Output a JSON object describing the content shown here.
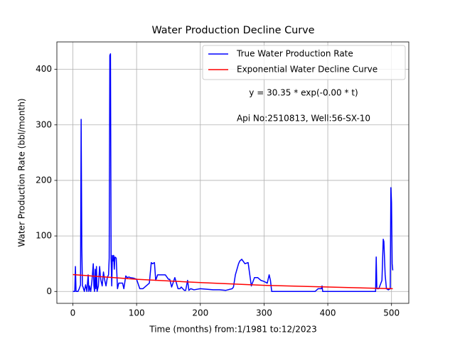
{
  "chart_data": {
    "type": "line",
    "title": "Water Production Decline Curve",
    "x_label": "Time (months) from:1/1981 to:12/2023",
    "y_label": "Water Production Rate (bbl/month)",
    "annotations": [
      "y = 30.35 * exp(-0.00 * t)",
      "Api No:2510813, Well:56-SX-10"
    ],
    "xlim": [
      -25.1,
      527.1
    ],
    "xticks": [
      0,
      100,
      200,
      300,
      400,
      500
    ],
    "ylim": [
      -21.4,
      449.4
    ],
    "yticks": [
      0,
      100,
      200,
      300,
      400
    ],
    "grid": true,
    "legend": "upper right",
    "series": [
      {
        "name": "True Water Production Rate",
        "color": "#0000ff",
        "x": [
          0,
          3,
          4,
          5,
          6,
          8,
          10,
          12,
          13,
          14,
          15,
          16,
          18,
          20,
          22,
          24,
          25,
          26,
          28,
          30,
          32,
          33,
          34,
          35,
          36,
          37,
          38,
          40,
          42,
          43,
          44,
          46,
          48,
          50,
          52,
          54,
          56,
          57,
          58,
          59,
          60,
          61,
          62,
          63,
          64,
          65,
          66,
          68,
          70,
          72,
          75,
          78,
          80,
          83,
          85,
          88,
          90,
          95,
          100,
          105,
          108,
          110,
          115,
          120,
          123,
          125,
          128,
          130,
          133,
          135,
          140,
          145,
          150,
          152,
          155,
          160,
          165,
          168,
          170,
          175,
          177,
          180,
          182,
          185,
          190,
          200,
          210,
          220,
          230,
          240,
          250,
          252,
          255,
          260,
          262,
          265,
          270,
          275,
          280,
          285,
          290,
          295,
          300,
          305,
          308,
          310,
          312,
          315,
          320,
          340,
          360,
          380,
          385,
          390,
          391,
          392,
          400,
          420,
          440,
          460,
          475,
          476,
          477,
          480,
          485,
          487,
          488,
          490,
          492,
          495,
          498,
          499,
          500,
          501,
          502
        ],
        "values": [
          0,
          0,
          45,
          0,
          0,
          0,
          5,
          12,
          310,
          80,
          10,
          8,
          0,
          12,
          0,
          30,
          0,
          10,
          0,
          20,
          50,
          10,
          0,
          40,
          5,
          45,
          0,
          10,
          45,
          30,
          20,
          10,
          35,
          20,
          10,
          25,
          30,
          60,
          425,
          428,
          60,
          10,
          65,
          55,
          65,
          40,
          62,
          60,
          5,
          15,
          15,
          15,
          5,
          28,
          25,
          26,
          25,
          24,
          22,
          5,
          5,
          5,
          10,
          15,
          52,
          50,
          52,
          20,
          30,
          30,
          30,
          30,
          22,
          22,
          8,
          25,
          5,
          5,
          8,
          2,
          2,
          20,
          2,
          5,
          3,
          5,
          4,
          3,
          3,
          2,
          5,
          8,
          30,
          50,
          55,
          58,
          50,
          52,
          10,
          25,
          25,
          20,
          18,
          15,
          30,
          20,
          0,
          0,
          0,
          0,
          0,
          0,
          5,
          5,
          10,
          0,
          0,
          0,
          0,
          0,
          0,
          62,
          5,
          5,
          20,
          94,
          90,
          30,
          5,
          3,
          5,
          187,
          160,
          50,
          38
        ]
      },
      {
        "name": "Exponential Water Decline Curve",
        "color": "#ff0000",
        "x": [
          0,
          100,
          200,
          300,
          400,
          502
        ],
        "values": [
          30.35,
          22,
          16,
          11,
          8,
          5
        ]
      }
    ]
  }
}
